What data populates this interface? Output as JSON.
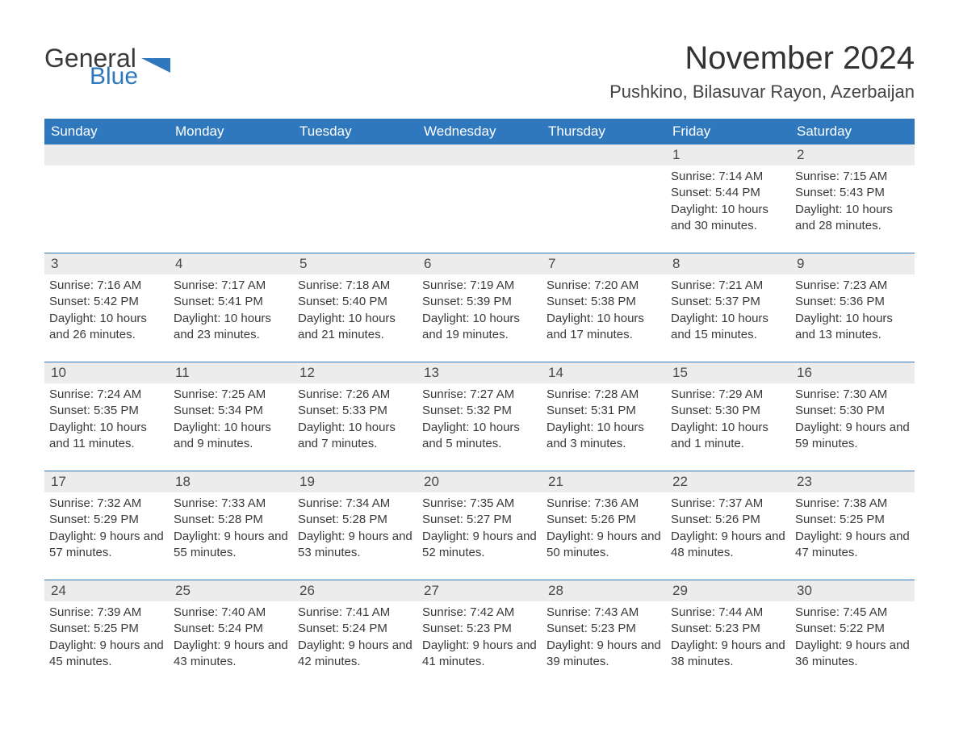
{
  "brand": {
    "general": "General",
    "blue": "Blue"
  },
  "title": "November 2024",
  "location": "Pushkino, Bilasuvar Rayon, Azerbaijan",
  "colors": {
    "header_bg": "#2f78bd",
    "header_text": "#ffffff",
    "daynum_bg": "#ececec",
    "week_border": "#2f78bd",
    "body_text": "#3a3a3a",
    "page_bg": "#ffffff",
    "logo_blue": "#2f78bd"
  },
  "weekdays": [
    "Sunday",
    "Monday",
    "Tuesday",
    "Wednesday",
    "Thursday",
    "Friday",
    "Saturday"
  ],
  "layout": {
    "columns": 7,
    "rows": 5,
    "first_day_column_index": 5,
    "title_fontsize": 40,
    "location_fontsize": 22,
    "weekday_fontsize": 17,
    "body_fontsize": 15
  },
  "days": [
    {
      "n": 1,
      "sunrise": "7:14 AM",
      "sunset": "5:44 PM",
      "daylight": "10 hours and 30 minutes."
    },
    {
      "n": 2,
      "sunrise": "7:15 AM",
      "sunset": "5:43 PM",
      "daylight": "10 hours and 28 minutes."
    },
    {
      "n": 3,
      "sunrise": "7:16 AM",
      "sunset": "5:42 PM",
      "daylight": "10 hours and 26 minutes."
    },
    {
      "n": 4,
      "sunrise": "7:17 AM",
      "sunset": "5:41 PM",
      "daylight": "10 hours and 23 minutes."
    },
    {
      "n": 5,
      "sunrise": "7:18 AM",
      "sunset": "5:40 PM",
      "daylight": "10 hours and 21 minutes."
    },
    {
      "n": 6,
      "sunrise": "7:19 AM",
      "sunset": "5:39 PM",
      "daylight": "10 hours and 19 minutes."
    },
    {
      "n": 7,
      "sunrise": "7:20 AM",
      "sunset": "5:38 PM",
      "daylight": "10 hours and 17 minutes."
    },
    {
      "n": 8,
      "sunrise": "7:21 AM",
      "sunset": "5:37 PM",
      "daylight": "10 hours and 15 minutes."
    },
    {
      "n": 9,
      "sunrise": "7:23 AM",
      "sunset": "5:36 PM",
      "daylight": "10 hours and 13 minutes."
    },
    {
      "n": 10,
      "sunrise": "7:24 AM",
      "sunset": "5:35 PM",
      "daylight": "10 hours and 11 minutes."
    },
    {
      "n": 11,
      "sunrise": "7:25 AM",
      "sunset": "5:34 PM",
      "daylight": "10 hours and 9 minutes."
    },
    {
      "n": 12,
      "sunrise": "7:26 AM",
      "sunset": "5:33 PM",
      "daylight": "10 hours and 7 minutes."
    },
    {
      "n": 13,
      "sunrise": "7:27 AM",
      "sunset": "5:32 PM",
      "daylight": "10 hours and 5 minutes."
    },
    {
      "n": 14,
      "sunrise": "7:28 AM",
      "sunset": "5:31 PM",
      "daylight": "10 hours and 3 minutes."
    },
    {
      "n": 15,
      "sunrise": "7:29 AM",
      "sunset": "5:30 PM",
      "daylight": "10 hours and 1 minute."
    },
    {
      "n": 16,
      "sunrise": "7:30 AM",
      "sunset": "5:30 PM",
      "daylight": "9 hours and 59 minutes."
    },
    {
      "n": 17,
      "sunrise": "7:32 AM",
      "sunset": "5:29 PM",
      "daylight": "9 hours and 57 minutes."
    },
    {
      "n": 18,
      "sunrise": "7:33 AM",
      "sunset": "5:28 PM",
      "daylight": "9 hours and 55 minutes."
    },
    {
      "n": 19,
      "sunrise": "7:34 AM",
      "sunset": "5:28 PM",
      "daylight": "9 hours and 53 minutes."
    },
    {
      "n": 20,
      "sunrise": "7:35 AM",
      "sunset": "5:27 PM",
      "daylight": "9 hours and 52 minutes."
    },
    {
      "n": 21,
      "sunrise": "7:36 AM",
      "sunset": "5:26 PM",
      "daylight": "9 hours and 50 minutes."
    },
    {
      "n": 22,
      "sunrise": "7:37 AM",
      "sunset": "5:26 PM",
      "daylight": "9 hours and 48 minutes."
    },
    {
      "n": 23,
      "sunrise": "7:38 AM",
      "sunset": "5:25 PM",
      "daylight": "9 hours and 47 minutes."
    },
    {
      "n": 24,
      "sunrise": "7:39 AM",
      "sunset": "5:25 PM",
      "daylight": "9 hours and 45 minutes."
    },
    {
      "n": 25,
      "sunrise": "7:40 AM",
      "sunset": "5:24 PM",
      "daylight": "9 hours and 43 minutes."
    },
    {
      "n": 26,
      "sunrise": "7:41 AM",
      "sunset": "5:24 PM",
      "daylight": "9 hours and 42 minutes."
    },
    {
      "n": 27,
      "sunrise": "7:42 AM",
      "sunset": "5:23 PM",
      "daylight": "9 hours and 41 minutes."
    },
    {
      "n": 28,
      "sunrise": "7:43 AM",
      "sunset": "5:23 PM",
      "daylight": "9 hours and 39 minutes."
    },
    {
      "n": 29,
      "sunrise": "7:44 AM",
      "sunset": "5:23 PM",
      "daylight": "9 hours and 38 minutes."
    },
    {
      "n": 30,
      "sunrise": "7:45 AM",
      "sunset": "5:22 PM",
      "daylight": "9 hours and 36 minutes."
    }
  ],
  "labels": {
    "sunrise": "Sunrise:",
    "sunset": "Sunset:",
    "daylight": "Daylight:"
  }
}
